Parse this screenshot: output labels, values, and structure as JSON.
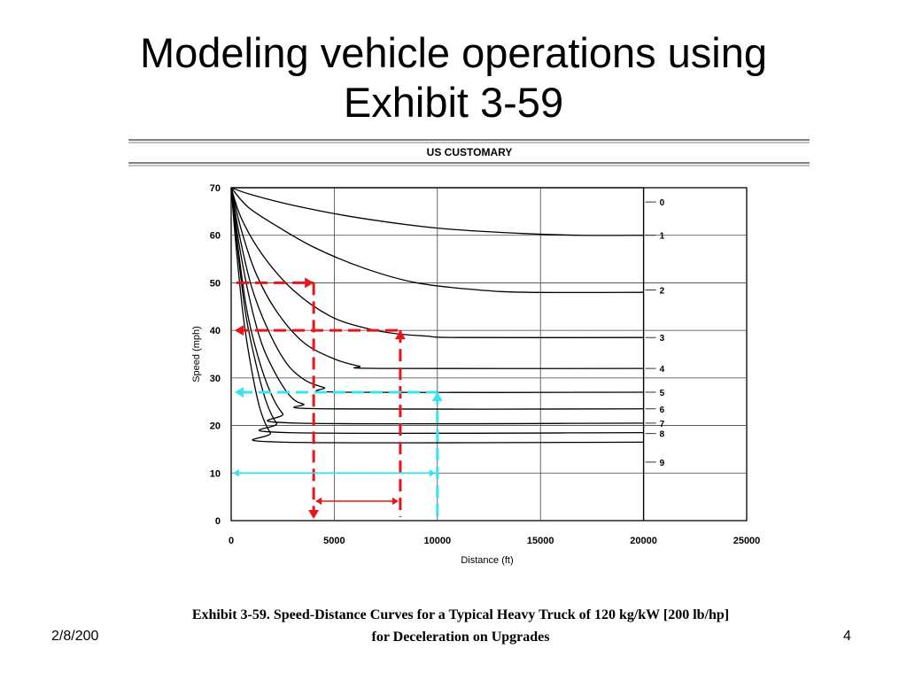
{
  "slide": {
    "title_line1": "Modeling vehicle operations using",
    "title_line2": "Exhibit 3-59",
    "caption_line1": "Exhibit 3-59.  Speed-Distance Curves for a Typical Heavy Truck of 120 kg/kW [200 lb/hp]",
    "caption_line2": "for Deceleration on Upgrades",
    "date": "2/8/200",
    "page": "4"
  },
  "chart_data": {
    "type": "line",
    "title": "US CUSTOMARY",
    "xlabel": "Distance (ft)",
    "ylabel": "Speed (mph)",
    "xlim": [
      0,
      25000
    ],
    "ylim": [
      0,
      70
    ],
    "xticks": [
      "0",
      "5000",
      "10000",
      "15000",
      "20000",
      "25000"
    ],
    "yticks": [
      "0",
      "10",
      "20",
      "30",
      "40",
      "50",
      "60",
      "70"
    ],
    "grid": true,
    "series": [
      {
        "name": "0",
        "x": [
          0,
          20000
        ],
        "y": [
          70,
          70
        ]
      },
      {
        "name": "1",
        "x": [
          0,
          1000,
          3000,
          6000,
          10000,
          14000,
          17000,
          20000
        ],
        "y": [
          70,
          68.5,
          66.3,
          63.8,
          61.5,
          60.4,
          60,
          60
        ]
      },
      {
        "name": "2",
        "x": [
          0,
          800,
          2000,
          4000,
          6500,
          9000,
          12000,
          14500,
          20000
        ],
        "y": [
          70,
          66,
          62.5,
          57.5,
          53,
          50,
          48.5,
          48,
          48
        ]
      },
      {
        "name": "3",
        "x": [
          0,
          500,
          1500,
          3000,
          4800,
          6500,
          8000,
          9500,
          11000,
          20000
        ],
        "y": [
          70,
          63.5,
          56,
          48.5,
          43,
          40.5,
          39.3,
          38.8,
          38.5,
          38.5
        ]
      },
      {
        "name": "4",
        "x": [
          0,
          500,
          1200,
          2200,
          3500,
          5000,
          6200,
          7200,
          20000
        ],
        "y": [
          70,
          61,
          52,
          44,
          37.5,
          34,
          32.5,
          32,
          32
        ]
      },
      {
        "name": "5",
        "x": [
          0,
          400,
          1000,
          1800,
          2700,
          3600,
          4500,
          5500,
          20000
        ],
        "y": [
          70,
          60,
          49,
          40,
          33,
          29.5,
          28,
          27,
          27
        ]
      },
      {
        "name": "6",
        "x": [
          0,
          350,
          900,
          1500,
          2200,
          2900,
          3500,
          4500,
          20000
        ],
        "y": [
          70,
          59,
          46.5,
          37,
          30.5,
          26,
          24.5,
          23.5,
          23.5
        ]
      },
      {
        "name": "7",
        "x": [
          0,
          300,
          750,
          1300,
          1900,
          2500,
          3200,
          20000
        ],
        "y": [
          70,
          58.5,
          44.5,
          34.5,
          27,
          22.5,
          20.5,
          20.5
        ]
      },
      {
        "name": "8",
        "x": [
          0,
          300,
          700,
          1200,
          1700,
          2200,
          2800,
          20000
        ],
        "y": [
          70,
          57.5,
          43.5,
          33,
          25,
          20.5,
          18.5,
          18.5
        ]
      },
      {
        "name": "9",
        "x": [
          0,
          250,
          600,
          1000,
          1400,
          1900,
          2500,
          20000
        ],
        "y": [
          70,
          57,
          42.5,
          31.5,
          23.5,
          18.5,
          16.5,
          16.5
        ]
      }
    ],
    "curve_labels": [
      {
        "text": "0",
        "y": 67
      },
      {
        "text": "1",
        "y": 60
      },
      {
        "text": "2",
        "y": 48.5
      },
      {
        "text": "3",
        "y": 38.5
      },
      {
        "text": "4",
        "y": 32
      },
      {
        "text": "5",
        "y": 27
      },
      {
        "text": "6",
        "y": 23.5
      },
      {
        "text": "7",
        "y": 20.5
      },
      {
        "text": "8",
        "y": 18.3
      },
      {
        "text": "9",
        "y": 12.3
      }
    ],
    "annotations": {
      "red_dashed": [
        {
          "speed": 50,
          "distance": 4000
        },
        {
          "speed": 40,
          "distance": 8200
        }
      ],
      "red_arrow_span": [
        4000,
        8200
      ],
      "cyan_dashed": {
        "speed": 27,
        "distance": 10000
      },
      "cyan_arrow_span": [
        0,
        10000
      ],
      "colors": {
        "red": "#e8141b",
        "cyan": "#35e6ee"
      }
    }
  }
}
